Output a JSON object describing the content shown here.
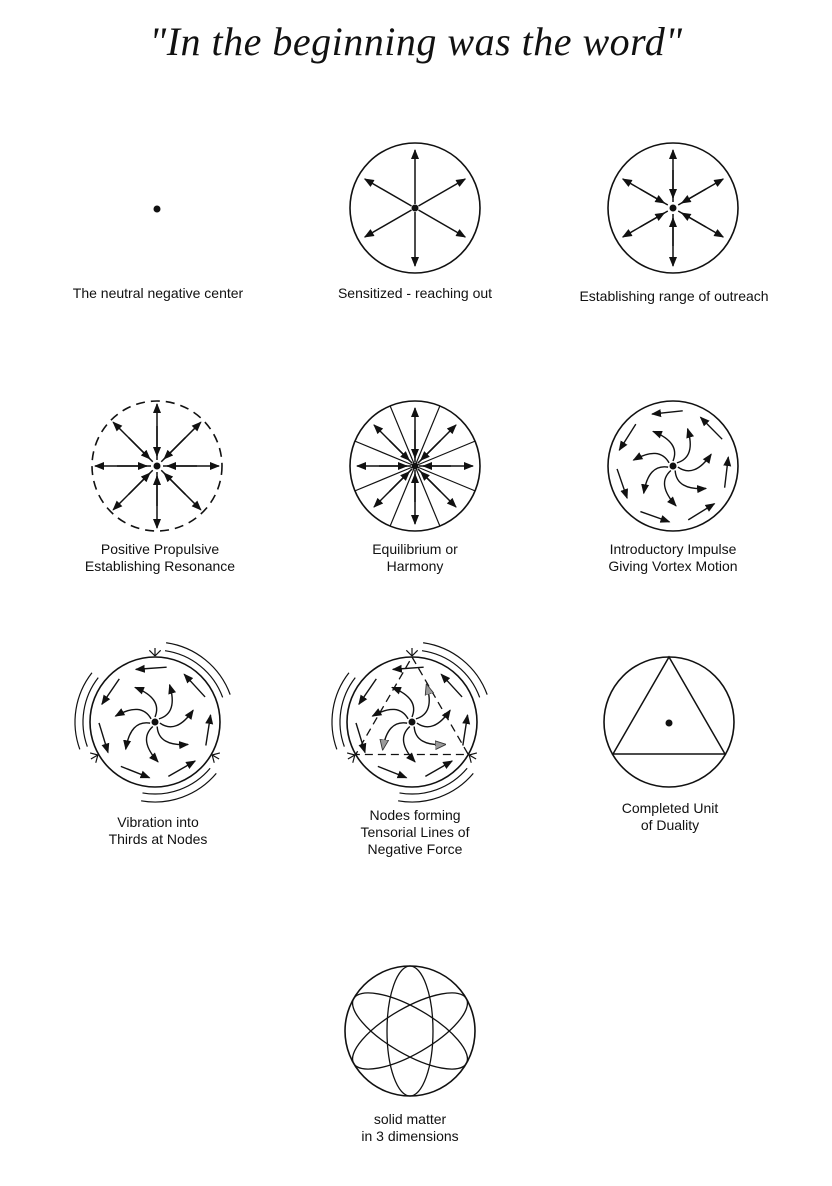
{
  "title": "\"In the beginning was the word\"",
  "figures": [
    {
      "label_lines": [
        "The neutral negative center"
      ]
    },
    {
      "label_lines": [
        "Sensitized - reaching out"
      ]
    },
    {
      "label_lines": [
        "Establishing range of outreach"
      ]
    },
    {
      "label_lines": [
        "Positive Propulsive",
        "Establishing Resonance"
      ]
    },
    {
      "label_lines": [
        "Equilibrium or",
        "Harmony"
      ]
    },
    {
      "label_lines": [
        "Introductory Impulse",
        "Giving Vortex Motion"
      ]
    },
    {
      "label_lines": [
        "Vibration into",
        "Thirds at Nodes"
      ]
    },
    {
      "label_lines": [
        "Nodes forming",
        "Tensorial Lines of",
        "Negative Force"
      ]
    },
    {
      "label_lines": [
        "Completed Unit",
        "of Duality"
      ]
    },
    {
      "label_lines": [
        "solid matter",
        "in 3 dimensions"
      ]
    }
  ]
}
